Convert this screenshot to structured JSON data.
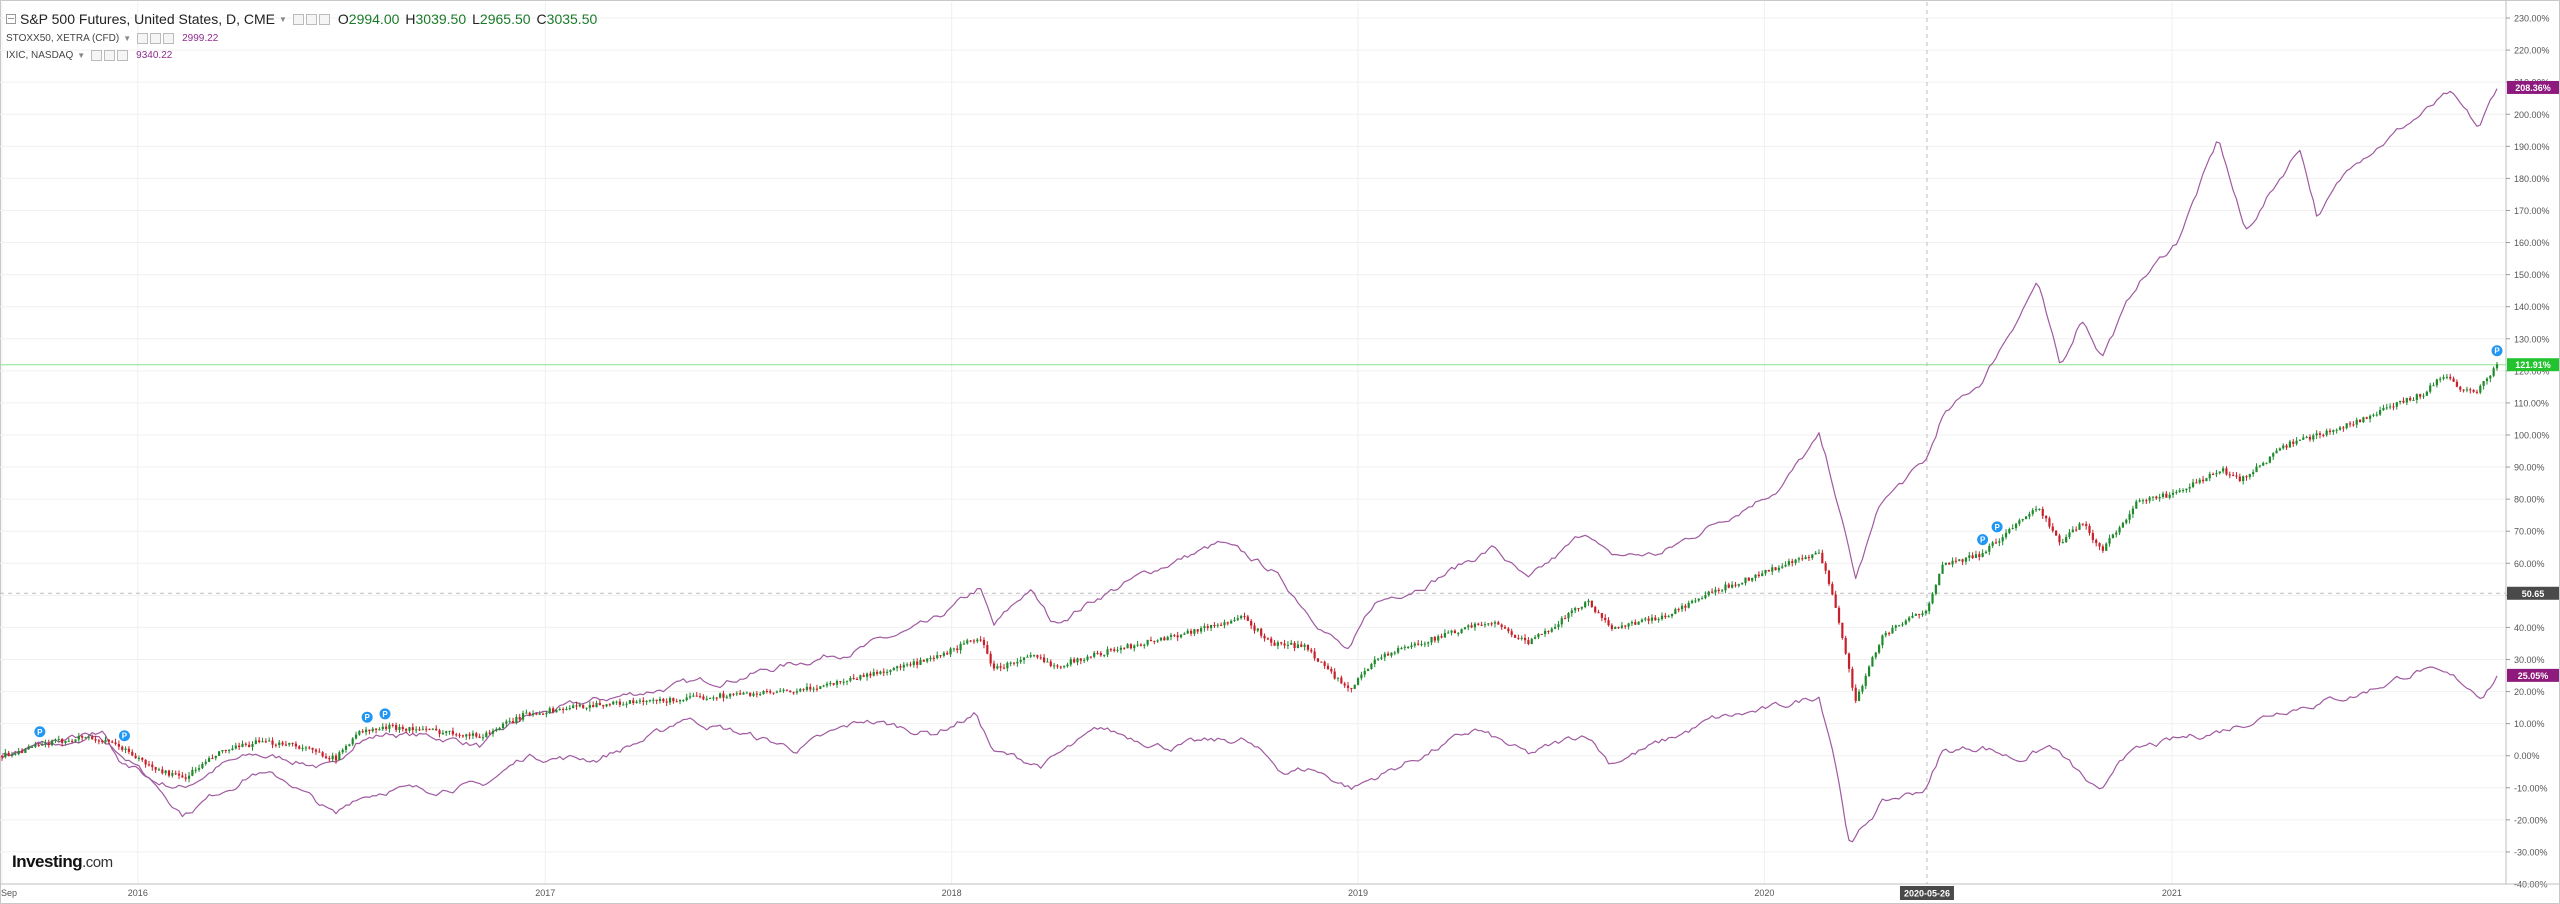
{
  "main_series": {
    "title": "S&P 500 Futures, United States, D, CME",
    "ohlc": [
      {
        "key": "O",
        "value": "2994.00"
      },
      {
        "key": "H",
        "value": "3039.50"
      },
      {
        "key": "L",
        "value": "2965.50"
      },
      {
        "key": "C",
        "value": "3035.50"
      }
    ]
  },
  "compare_series": [
    {
      "name": "STOXX50, XETRA (CFD)",
      "value": "2999.22"
    },
    {
      "name": "IXIC, NASDAQ",
      "value": "9340.22"
    }
  ],
  "logo": {
    "text": "Investing",
    "suffix": ".com"
  },
  "crosshair": {
    "date_label": "2020-05-26",
    "value_label": "50.65"
  },
  "colors": {
    "up": "#1f8a2c",
    "down": "#c8202a",
    "compare": "#a05aa0",
    "badge_purple": "#8e1a7e",
    "badge_green": "#22c32e",
    "badge_gray": "#4a4a4a",
    "event": "#2196f3"
  },
  "chart_data": {
    "type": "line",
    "x_type": "date",
    "x_ticks": [
      {
        "label": "Sep",
        "date": "2015-09-01"
      },
      {
        "label": "2016",
        "date": "2016-01-01"
      },
      {
        "label": "2017",
        "date": "2017-01-01"
      },
      {
        "label": "2018",
        "date": "2018-01-01"
      },
      {
        "label": "2019",
        "date": "2019-01-01"
      },
      {
        "label": "2020",
        "date": "2020-01-01"
      },
      {
        "label": "2021",
        "date": "2021-01-01"
      }
    ],
    "ylim": [
      -40,
      235
    ],
    "y_unit": "%",
    "y_ticks": [
      "230.00%",
      "220.00%",
      "210.00%",
      "200.00%",
      "190.00%",
      "180.00%",
      "170.00%",
      "160.00%",
      "150.00%",
      "140.00%",
      "130.00%",
      "120.00%",
      "110.00%",
      "100.00%",
      "90.00%",
      "80.00%",
      "70.00%",
      "60.00%",
      "50.00%",
      "40.00%",
      "30.00%",
      "20.00%",
      "10.00%",
      "0.00%",
      "-10.00%",
      "-20.00%",
      "-30.00%",
      "-40.00%"
    ],
    "y_tick_values": [
      230,
      220,
      210,
      200,
      190,
      180,
      170,
      160,
      150,
      140,
      130,
      120,
      110,
      100,
      90,
      80,
      70,
      60,
      50,
      40,
      30,
      20,
      10,
      0,
      -10,
      -20,
      -30,
      -40
    ],
    "series": [
      {
        "name": "S&P 500 Futures",
        "style": "candlestick",
        "last_label": "121.91%",
        "points": [
          [
            "2015-09-01",
            0
          ],
          [
            "2015-10-15",
            4
          ],
          [
            "2015-11-15",
            6
          ],
          [
            "2015-12-15",
            3
          ],
          [
            "2016-01-15",
            -4
          ],
          [
            "2016-02-11",
            -7
          ],
          [
            "2016-03-15",
            1
          ],
          [
            "2016-04-15",
            4
          ],
          [
            "2016-05-15",
            4
          ],
          [
            "2016-06-27",
            -1
          ],
          [
            "2016-07-15",
            7
          ],
          [
            "2016-08-15",
            9
          ],
          [
            "2016-09-15",
            8
          ],
          [
            "2016-10-15",
            7
          ],
          [
            "2016-11-04",
            6
          ],
          [
            "2016-12-15",
            13
          ],
          [
            "2017-02-15",
            16
          ],
          [
            "2017-04-15",
            17
          ],
          [
            "2017-06-15",
            19
          ],
          [
            "2017-08-15",
            20
          ],
          [
            "2017-10-15",
            25
          ],
          [
            "2017-12-15",
            30
          ],
          [
            "2018-01-26",
            37
          ],
          [
            "2018-02-08",
            27
          ],
          [
            "2018-03-15",
            31
          ],
          [
            "2018-04-05",
            28
          ],
          [
            "2018-05-15",
            32
          ],
          [
            "2018-07-15",
            37
          ],
          [
            "2018-09-20",
            43
          ],
          [
            "2018-10-15",
            35
          ],
          [
            "2018-11-15",
            34
          ],
          [
            "2018-12-24",
            20
          ],
          [
            "2019-01-15",
            30
          ],
          [
            "2019-02-15",
            34
          ],
          [
            "2019-04-30",
            42
          ],
          [
            "2019-06-03",
            35
          ],
          [
            "2019-07-26",
            48
          ],
          [
            "2019-08-15",
            40
          ],
          [
            "2019-10-01",
            43
          ],
          [
            "2019-11-15",
            51
          ],
          [
            "2020-01-15",
            59
          ],
          [
            "2020-02-19",
            63
          ],
          [
            "2020-03-03",
            50
          ],
          [
            "2020-03-23",
            17
          ],
          [
            "2020-04-15",
            37
          ],
          [
            "2020-05-26",
            46
          ],
          [
            "2020-06-08",
            59
          ],
          [
            "2020-07-15",
            63
          ],
          [
            "2020-09-02",
            78
          ],
          [
            "2020-09-23",
            66
          ],
          [
            "2020-10-12",
            73
          ],
          [
            "2020-10-30",
            64
          ],
          [
            "2020-12-01",
            79
          ],
          [
            "2021-01-05",
            82
          ],
          [
            "2021-02-15",
            89
          ],
          [
            "2021-03-04",
            86
          ],
          [
            "2021-04-15",
            97
          ],
          [
            "2021-06-15",
            104
          ],
          [
            "2021-08-15",
            113
          ],
          [
            "2021-09-03",
            119
          ],
          [
            "2021-09-15",
            115
          ],
          [
            "2021-10-01",
            113
          ],
          [
            "2021-10-20",
            121.91
          ]
        ]
      },
      {
        "name": "IXIC, NASDAQ",
        "style": "line",
        "last_label": "208.36%",
        "points": [
          [
            "2015-09-01",
            0
          ],
          [
            "2015-10-15",
            4
          ],
          [
            "2015-11-15",
            6
          ],
          [
            "2015-12-15",
            1
          ],
          [
            "2016-01-15",
            -8
          ],
          [
            "2016-02-11",
            -10
          ],
          [
            "2016-03-15",
            -3
          ],
          [
            "2016-04-15",
            0
          ],
          [
            "2016-05-15",
            -1
          ],
          [
            "2016-06-27",
            -4
          ],
          [
            "2016-07-15",
            5
          ],
          [
            "2016-08-15",
            7
          ],
          [
            "2016-09-15",
            6
          ],
          [
            "2016-10-15",
            5
          ],
          [
            "2016-11-04",
            3
          ],
          [
            "2016-12-15",
            12
          ],
          [
            "2017-02-15",
            17
          ],
          [
            "2017-04-15",
            21
          ],
          [
            "2017-06-15",
            24
          ],
          [
            "2017-08-15",
            29
          ],
          [
            "2017-10-15",
            34
          ],
          [
            "2017-12-15",
            41
          ],
          [
            "2018-01-26",
            52
          ],
          [
            "2018-02-08",
            40
          ],
          [
            "2018-03-12",
            52
          ],
          [
            "2018-04-02",
            41
          ],
          [
            "2018-05-15",
            50
          ],
          [
            "2018-07-15",
            60
          ],
          [
            "2018-08-30",
            66
          ],
          [
            "2018-10-15",
            58
          ],
          [
            "2018-11-20",
            44
          ],
          [
            "2018-12-24",
            32
          ],
          [
            "2019-01-15",
            47
          ],
          [
            "2019-03-15",
            56
          ],
          [
            "2019-05-03",
            65
          ],
          [
            "2019-06-03",
            54
          ],
          [
            "2019-07-26",
            70
          ],
          [
            "2019-08-15",
            62
          ],
          [
            "2019-10-01",
            63
          ],
          [
            "2019-11-15",
            72
          ],
          [
            "2020-01-15",
            84
          ],
          [
            "2020-02-19",
            99
          ],
          [
            "2020-03-03",
            84
          ],
          [
            "2020-03-23",
            55
          ],
          [
            "2020-04-15",
            79
          ],
          [
            "2020-05-26",
            92
          ],
          [
            "2020-06-08",
            105
          ],
          [
            "2020-07-15",
            117
          ],
          [
            "2020-09-02",
            148
          ],
          [
            "2020-09-23",
            120
          ],
          [
            "2020-10-12",
            137
          ],
          [
            "2020-10-30",
            125
          ],
          [
            "2020-12-01",
            147
          ],
          [
            "2021-01-05",
            160
          ],
          [
            "2021-02-12",
            192
          ],
          [
            "2021-03-08",
            163
          ],
          [
            "2021-04-26",
            190
          ],
          [
            "2021-05-12",
            168
          ],
          [
            "2021-06-15",
            186
          ],
          [
            "2021-07-15",
            193
          ],
          [
            "2021-09-07",
            206
          ],
          [
            "2021-10-04",
            195
          ],
          [
            "2021-10-20",
            208.36
          ]
        ]
      },
      {
        "name": "STOXX50, XETRA (CFD)",
        "style": "line",
        "last_label": "25.05%",
        "points": [
          [
            "2015-09-01",
            0
          ],
          [
            "2015-10-15",
            3
          ],
          [
            "2015-11-30",
            8
          ],
          [
            "2015-12-15",
            0
          ],
          [
            "2016-01-15",
            -8
          ],
          [
            "2016-02-11",
            -18
          ],
          [
            "2016-03-15",
            -11
          ],
          [
            "2016-04-15",
            -5
          ],
          [
            "2016-05-15",
            -8
          ],
          [
            "2016-06-27",
            -19
          ],
          [
            "2016-07-15",
            -13
          ],
          [
            "2016-08-15",
            -10
          ],
          [
            "2016-09-15",
            -11
          ],
          [
            "2016-10-15",
            -9
          ],
          [
            "2016-11-04",
            -10
          ],
          [
            "2016-12-15",
            0
          ],
          [
            "2017-02-15",
            -1
          ],
          [
            "2017-04-15",
            7
          ],
          [
            "2017-05-05",
            12
          ],
          [
            "2017-06-15",
            8
          ],
          [
            "2017-08-15",
            2
          ],
          [
            "2017-10-15",
            11
          ],
          [
            "2017-12-15",
            7
          ],
          [
            "2018-01-23",
            13
          ],
          [
            "2018-02-08",
            1
          ],
          [
            "2018-03-23",
            -3
          ],
          [
            "2018-05-15",
            8
          ],
          [
            "2018-07-15",
            3
          ],
          [
            "2018-09-20",
            5
          ],
          [
            "2018-10-26",
            -5
          ],
          [
            "2018-11-20",
            -4
          ],
          [
            "2018-12-27",
            -10
          ],
          [
            "2019-02-15",
            -2
          ],
          [
            "2019-04-17",
            8
          ],
          [
            "2019-06-03",
            0
          ],
          [
            "2019-07-26",
            7
          ],
          [
            "2019-08-15",
            -2
          ],
          [
            "2019-10-01",
            4
          ],
          [
            "2019-11-15",
            11
          ],
          [
            "2020-01-15",
            15
          ],
          [
            "2020-02-19",
            19
          ],
          [
            "2020-03-03",
            2
          ],
          [
            "2020-03-18",
            -28
          ],
          [
            "2020-04-15",
            -15
          ],
          [
            "2020-05-26",
            -10
          ],
          [
            "2020-06-08",
            1
          ],
          [
            "2020-07-15",
            3
          ],
          [
            "2020-08-15",
            -1
          ],
          [
            "2020-09-15",
            3
          ],
          [
            "2020-10-30",
            -13
          ],
          [
            "2020-11-16",
            0
          ],
          [
            "2020-12-15",
            3
          ],
          [
            "2021-02-15",
            8
          ],
          [
            "2021-04-15",
            15
          ],
          [
            "2021-06-15",
            19
          ],
          [
            "2021-08-13",
            27
          ],
          [
            "2021-09-15",
            23
          ],
          [
            "2021-10-06",
            19
          ],
          [
            "2021-10-20",
            25.05
          ]
        ]
      }
    ],
    "events": [
      {
        "label": "P",
        "date": "2015-10-05"
      },
      {
        "label": "P",
        "date": "2015-12-20"
      },
      {
        "label": "P",
        "date": "2016-07-25"
      },
      {
        "label": "P",
        "date": "2016-08-10"
      },
      {
        "label": "P",
        "date": "2020-07-15"
      },
      {
        "label": "P",
        "date": "2020-07-28"
      },
      {
        "label": "P",
        "date": "2021-10-20"
      }
    ],
    "horizontal_line": {
      "value": 121.91
    },
    "crosshair": {
      "date": "2020-05-26",
      "value": 50.65
    },
    "grid": true
  }
}
